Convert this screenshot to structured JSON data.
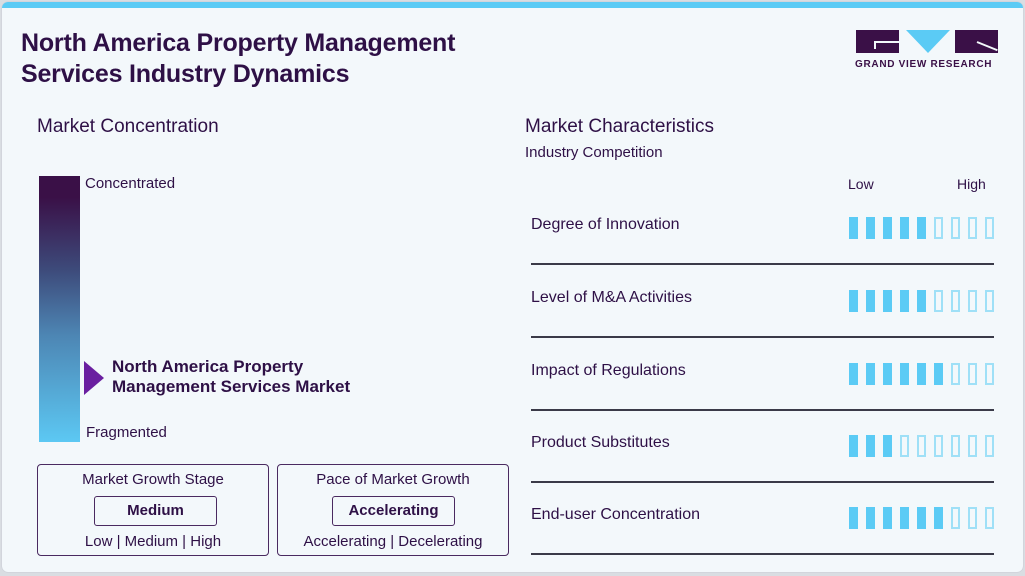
{
  "header": {
    "title_line1": "North America Property Management",
    "title_line2": "Services Industry Dynamics",
    "logo_text": "GRAND VIEW RESEARCH"
  },
  "concentration": {
    "title": "Market Concentration",
    "top_label": "Concentrated",
    "bottom_label": "Fragmented",
    "market_line1": "North America Property",
    "market_line2": "Management Services Market"
  },
  "growth_stage": {
    "title": "Market Growth Stage",
    "value": "Medium",
    "options": "Low | Medium | High"
  },
  "growth_pace": {
    "title": "Pace of Market Growth",
    "value": "Accelerating",
    "options": "Accelerating | Decelerating"
  },
  "characteristics": {
    "title": "Market Characteristics",
    "subtitle": "Industry Competition",
    "scale_low": "Low",
    "scale_high": "High",
    "total_segments": 9,
    "rows": [
      {
        "label": "Degree of Innovation",
        "level": 5
      },
      {
        "label": "Level of M&A Activities",
        "level": 5
      },
      {
        "label": "Impact of Regulations",
        "level": 6
      },
      {
        "label": "Product Substitutes",
        "level": 3
      },
      {
        "label": "End-user Concentration",
        "level": 6
      }
    ]
  },
  "colors": {
    "brand_dark": "#2e1046",
    "accent_blue": "#5bcbf5",
    "arrow_purple": "#6a1fa0",
    "background": "#f3f8fb"
  }
}
